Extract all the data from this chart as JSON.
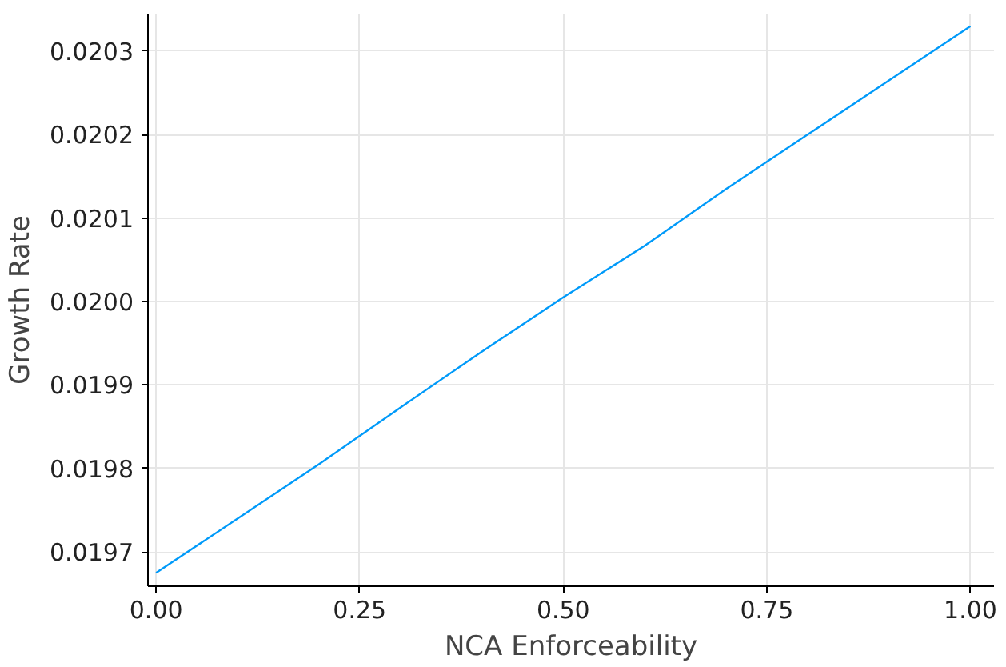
{
  "chart_data": {
    "type": "line",
    "xlabel": "NCA Enforceability",
    "ylabel": "Growth Rate",
    "x": [
      0,
      0.1,
      0.2,
      0.3,
      0.4,
      0.5,
      0.6,
      0.7,
      0.8,
      0.9,
      1.0
    ],
    "series": [
      {
        "color": "#009af9",
        "values": [
          0.019675,
          0.01974,
          0.019805,
          0.019873,
          0.01994,
          0.020005,
          0.020067,
          0.020135,
          0.0202,
          0.020265,
          0.02033
        ]
      }
    ],
    "xlim": [
      -0.01,
      1.029
    ],
    "ylim": [
      0.019659,
      0.020345
    ],
    "xticks": [
      {
        "value": 0,
        "label": "0.00"
      },
      {
        "value": 0.25,
        "label": "0.25"
      },
      {
        "value": 0.5,
        "label": "0.50"
      },
      {
        "value": 0.75,
        "label": "0.75"
      },
      {
        "value": 1,
        "label": "1.00"
      }
    ],
    "yticks": [
      0.0197,
      0.0198,
      0.0199,
      {
        "value": 0.02,
        "label": "0.0200"
      },
      0.0201,
      0.0202,
      0.0203
    ],
    "grid": true,
    "marker": "none",
    "line_style": "solid"
  }
}
